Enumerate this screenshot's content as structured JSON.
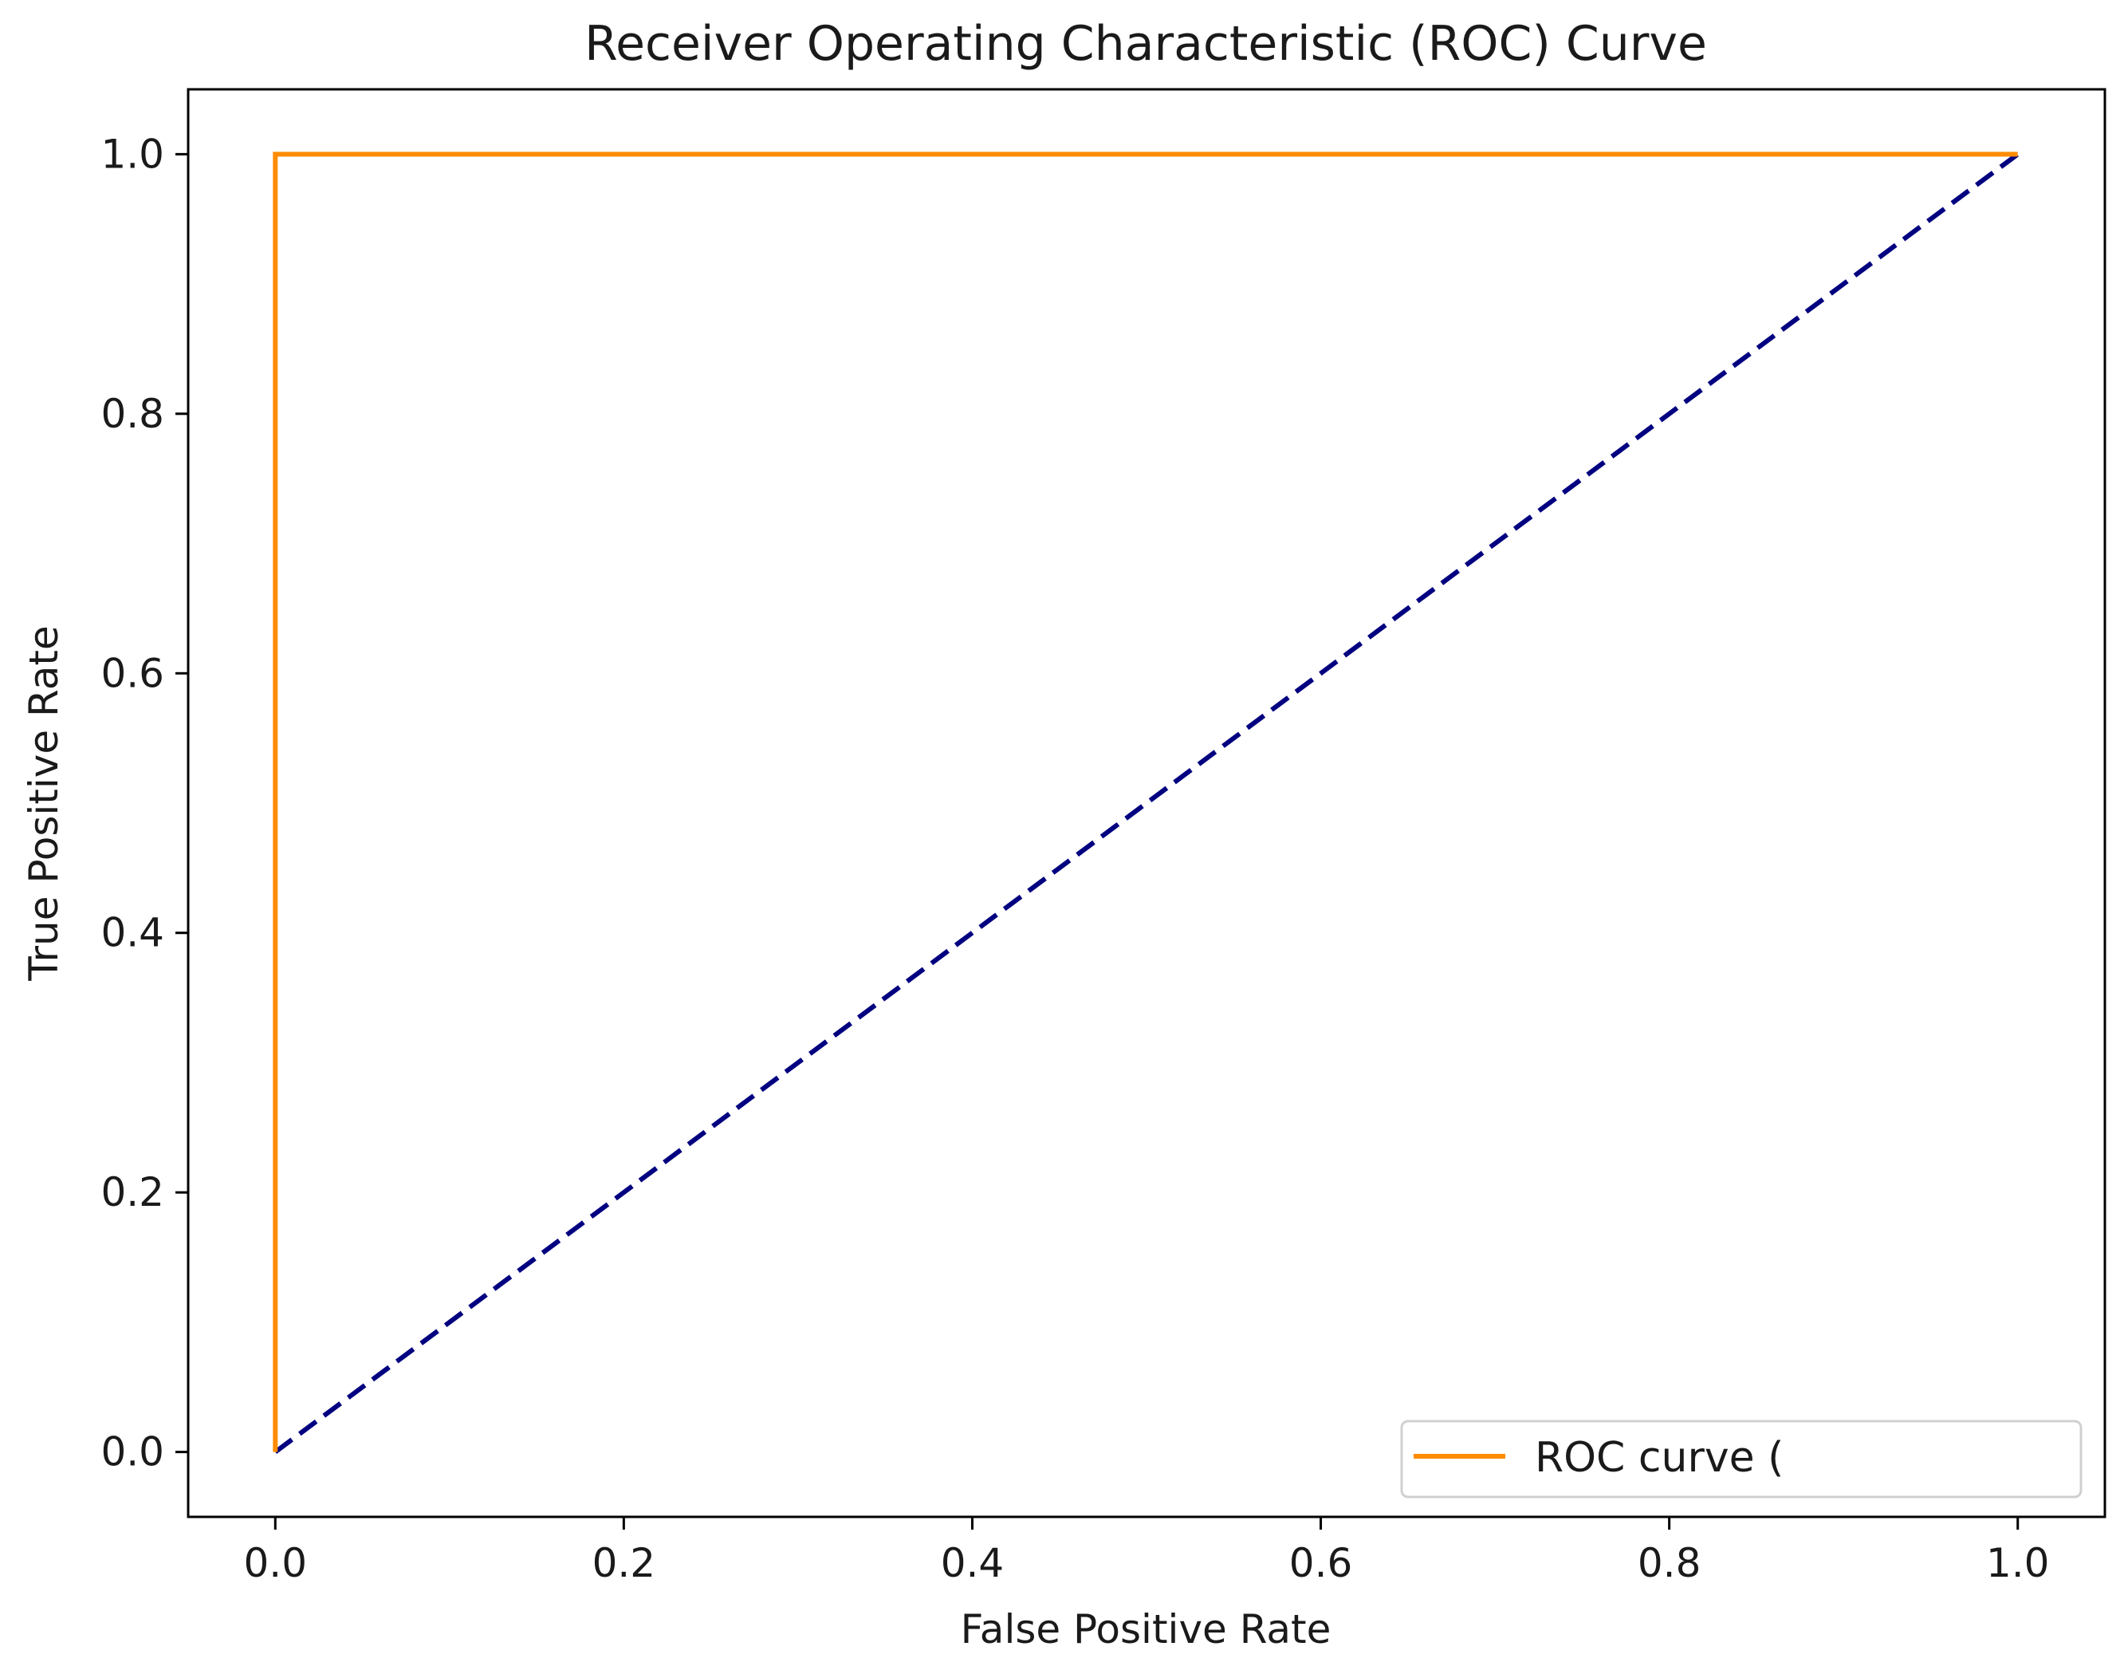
{
  "chart_data": {
    "type": "line",
    "title": "Receiver Operating Characteristic (ROC) Curve",
    "xlabel": "False Positive Rate",
    "ylabel": "True Positive Rate",
    "xlim": [
      -0.05,
      1.05
    ],
    "ylim": [
      -0.05,
      1.05
    ],
    "x_ticks": [
      "0.0",
      "0.2",
      "0.4",
      "0.6",
      "0.8",
      "1.0"
    ],
    "y_ticks": [
      "0.0",
      "0.2",
      "0.4",
      "0.6",
      "0.8",
      "1.0"
    ],
    "x_tick_values": [
      0,
      0.2,
      0.4,
      0.6,
      0.8,
      1.0
    ],
    "y_tick_values": [
      0,
      0.2,
      0.4,
      0.6,
      0.8,
      1.0
    ],
    "grid": false,
    "legend_position": "lower right",
    "series": [
      {
        "name": "ROC curve (",
        "color": "#ff8c00",
        "style": "solid",
        "x": [
          0.0,
          0.0,
          1.0
        ],
        "y": [
          0.0,
          1.0,
          1.0
        ]
      },
      {
        "color": "#000080",
        "style": "dashed",
        "x": [
          0.0,
          1.0
        ],
        "y": [
          0.0,
          1.0
        ]
      }
    ]
  }
}
